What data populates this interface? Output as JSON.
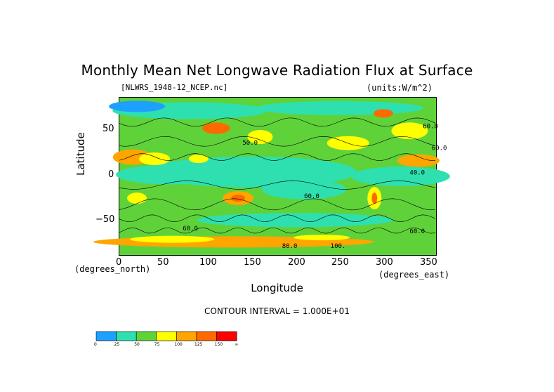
{
  "chart_data": {
    "type": "heatmap",
    "title": "Monthly Mean Net Longwave Radiation Flux at Surface",
    "file_label": "[NLWRS_1948-12_NCEP.nc]",
    "units_label": "(units:W/m^2)",
    "xlabel": "Longitude",
    "ylabel": "Latitude",
    "x_units_left": "(degrees_north)",
    "x_units_right": "(degrees_east)",
    "xlim": [
      0,
      360
    ],
    "ylim": [
      -90,
      90
    ],
    "x_ticks": [
      "0",
      "50",
      "100",
      "150",
      "200",
      "250",
      "300",
      "350"
    ],
    "y_ticks": [
      "50",
      "0",
      "−50"
    ],
    "contour_interval_text": "CONTOUR INTERVAL = 1.000E+01",
    "colorbar": {
      "boundaries": [
        "0",
        "25",
        "50",
        "75",
        "100",
        "125",
        "150",
        "∞"
      ],
      "colors": [
        "#1ea0ff",
        "#2ee0b0",
        "#5fd23a",
        "#ffff00",
        "#ffa500",
        "#ff6a00",
        "#ff0000"
      ]
    },
    "contour_labels": [
      "40.0",
      "60.0",
      "60.0",
      "50.0",
      "60.0",
      "60.0",
      "80.0",
      "100.",
      "60.0"
    ]
  }
}
